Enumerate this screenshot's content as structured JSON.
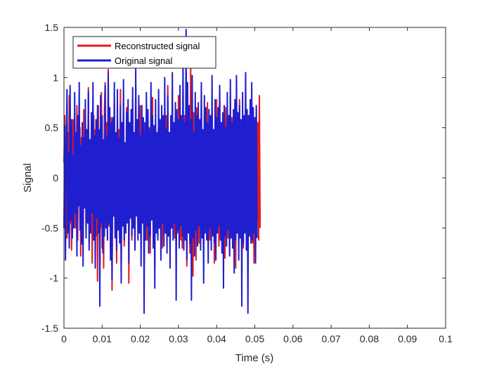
{
  "chart_data": {
    "type": "line",
    "title": "",
    "xlabel": "Time (s)",
    "ylabel": "Signal",
    "xlim": [
      0,
      0.1
    ],
    "ylim": [
      -1.5,
      1.5
    ],
    "grid": false,
    "legend_position": "top-left",
    "x_ticks": [
      0,
      0.01,
      0.02,
      0.03,
      0.04,
      0.05,
      0.06,
      0.07,
      0.08,
      0.09,
      0.1
    ],
    "x_tick_labels": [
      "0",
      "0.01",
      "0.02",
      "0.03",
      "0.04",
      "0.05",
      "0.06",
      "0.07",
      "0.08",
      "0.09",
      "0.1"
    ],
    "y_ticks": [
      -1.5,
      -1,
      -0.5,
      0,
      0.5,
      1,
      1.5
    ],
    "y_tick_labels": [
      "-1.5",
      "-1",
      "-0.5",
      "0",
      "0.5",
      "1",
      "1.5"
    ],
    "x_start": 0,
    "x_step": 0.0002,
    "series": [
      {
        "name": "Reconstructed signal",
        "color": "#e41a1c",
        "values": [
          0.15,
          0.62,
          -0.35,
          0.28,
          -0.6,
          0.45,
          -0.12,
          0.82,
          -0.45,
          0.3,
          -0.72,
          0.22,
          0.58,
          -0.28,
          0.4,
          -0.5,
          0.12,
          0.72,
          -0.62,
          0.35,
          -0.2,
          0.5,
          -0.78,
          0.4,
          0.1,
          -0.45,
          0.68,
          -0.3,
          0.25,
          -0.55,
          0.45,
          -0.15,
          0.9,
          -0.65,
          0.32,
          -0.4,
          0.55,
          -0.85,
          0.2,
          0.62,
          -0.35,
          0.48,
          -0.58,
          0.3,
          -1.03,
          0.72,
          -0.25,
          0.45,
          -0.5,
          0.85,
          -0.7,
          0.38,
          -0.9,
          0.66,
          0.95,
          -0.45,
          0.55,
          -0.62,
          1.08,
          -0.48,
          0.35,
          -0.72,
          0.6,
          -1.12,
          0.42,
          -0.38,
          0.78,
          -0.55,
          0.3,
          -0.85,
          0.62,
          -0.28,
          0.48,
          -0.6,
          0.88,
          -0.95,
          0.55,
          -0.35,
          0.42,
          -0.68,
          0.35,
          -0.5,
          0.7,
          -0.4,
          0.6,
          -1.05,
          0.45,
          -0.3,
          0.52,
          -0.62,
          0.78,
          -0.48,
          0.38,
          -0.72,
          0.95,
          -0.35,
          0.25,
          -0.55,
          0.6,
          -0.4,
          0.72,
          -0.65,
          0.48,
          -0.3,
          0.55,
          -0.88,
          0.42,
          -0.5,
          0.35,
          -0.62,
          0.68,
          -0.42,
          0.5,
          -0.75,
          0.62,
          -0.35,
          0.8,
          -0.58,
          0.42,
          -0.9,
          0.55,
          -0.45,
          0.38,
          -0.6,
          0.72,
          -0.5,
          0.45,
          -0.32,
          0.6,
          -0.7,
          0.35,
          -0.45,
          0.5,
          -0.38,
          0.62,
          -0.55,
          0.92,
          -0.48,
          0.4,
          -0.65,
          0.55,
          -0.38,
          0.3,
          -0.5,
          0.48,
          -0.6,
          0.68,
          -0.42,
          0.35,
          -0.55,
          0.82,
          -0.48,
          0.5,
          -0.62,
          0.45,
          -0.7,
          0.98,
          -0.55,
          0.62,
          -0.4,
          0.52,
          -0.88,
          0.72,
          -0.45,
          0.58,
          -0.75,
          1.18,
          -0.52,
          0.45,
          -0.98,
          0.65,
          -0.4,
          0.55,
          -0.82,
          0.7,
          -0.48,
          0.6,
          -0.65,
          0.5,
          -0.42,
          0.88,
          -0.55,
          0.4,
          -0.72,
          0.62,
          -0.48,
          0.35,
          -0.58,
          0.75,
          -0.5,
          0.45,
          -0.62,
          0.55,
          -0.38,
          0.68,
          -0.52,
          0.42,
          -0.85,
          0.6,
          -0.45,
          0.78,
          -0.55,
          0.48,
          -0.68,
          0.92,
          -0.5,
          0.38,
          -0.72,
          0.55,
          -0.42,
          0.62,
          -0.8,
          0.7,
          -0.48,
          0.52,
          -0.6,
          0.45,
          -0.75,
          0.82,
          -0.55,
          0.6,
          -0.42,
          0.48,
          -0.68,
          0.72,
          -0.9,
          0.58,
          -0.45,
          0.4,
          -0.62,
          0.78,
          -0.5,
          0.55,
          -0.38,
          0.65,
          -0.7,
          0.48,
          -0.52,
          0.9,
          -0.6,
          0.42,
          -0.55,
          0.62,
          -0.48,
          0.72,
          -0.4,
          0.5,
          -0.65,
          0.58,
          -0.85,
          0.45,
          -0.52,
          0.7,
          -0.42,
          0.55,
          -0.62,
          0.82,
          -0.5
        ]
      },
      {
        "name": "Original signal",
        "color": "#1f1fd0",
        "values": [
          -0.5,
          0.52,
          -0.82,
          0.35,
          0.88,
          -0.55,
          0.25,
          -0.7,
          0.92,
          -0.42,
          0.58,
          -0.6,
          0.22,
          -0.5,
          0.85,
          -0.35,
          0.45,
          -0.78,
          0.62,
          -0.28,
          0.95,
          -0.52,
          0.32,
          -0.66,
          0.55,
          -0.88,
          0.4,
          -0.3,
          0.78,
          -0.6,
          0.48,
          -0.45,
          0.86,
          -0.72,
          0.38,
          -0.55,
          0.65,
          -0.35,
          0.95,
          -0.62,
          0.42,
          -0.9,
          0.58,
          -0.4,
          0.72,
          -0.55,
          0.48,
          -1.28,
          0.82,
          -0.45,
          0.62,
          -0.75,
          0.38,
          -0.58,
          0.92,
          -0.5,
          0.42,
          -0.62,
          1.05,
          -0.45,
          0.7,
          -0.82,
          0.55,
          -1.02,
          0.6,
          -0.38,
          0.95,
          -0.6,
          0.45,
          -0.72,
          0.88,
          -0.52,
          0.4,
          -0.65,
          0.72,
          -1.05,
          0.55,
          -0.48,
          0.98,
          -0.62,
          0.35,
          -0.55,
          0.65,
          -0.45,
          0.78,
          -0.85,
          0.55,
          -0.4,
          0.68,
          -0.58,
          0.9,
          -0.5,
          0.45,
          -0.72,
          1.1,
          -0.38,
          0.58,
          -0.62,
          0.82,
          -0.55,
          0.42,
          -0.88,
          0.72,
          -0.45,
          0.6,
          -1.35,
          0.55,
          -0.62,
          0.85,
          -0.48,
          0.68,
          -0.75,
          0.48,
          -0.58,
          0.95,
          -0.42,
          0.62,
          -0.7,
          0.52,
          -1.1,
          0.78,
          -0.55,
          0.45,
          -0.62,
          0.88,
          -0.5,
          0.58,
          -0.82,
          0.72,
          -0.45,
          0.62,
          -0.68,
          1.0,
          -0.55,
          0.48,
          -0.75,
          0.82,
          -0.58,
          0.45,
          -0.9,
          0.62,
          -0.5,
          1.05,
          -0.62,
          0.55,
          -0.45,
          0.75,
          -1.22,
          0.68,
          -0.52,
          0.58,
          -0.7,
          0.92,
          -0.48,
          0.62,
          -0.58,
          1.18,
          -0.72,
          0.55,
          -0.62,
          1.48,
          -0.82,
          0.95,
          -0.55,
          0.72,
          -0.65,
          0.58,
          -1.22,
          1.02,
          -0.6,
          0.45,
          -0.78,
          0.85,
          -0.52,
          0.62,
          -0.68,
          0.75,
          -0.48,
          0.58,
          -0.72,
          0.95,
          -0.6,
          0.48,
          -1.05,
          0.82,
          -0.55,
          0.7,
          -0.62,
          0.55,
          -0.85,
          0.68,
          -0.5,
          0.62,
          -0.72,
          1.02,
          -0.58,
          0.48,
          -0.65,
          0.78,
          -0.82,
          0.6,
          -0.55,
          0.7,
          -0.48,
          0.92,
          -0.62,
          0.55,
          -0.75,
          0.65,
          -1.1,
          0.72,
          -0.58,
          0.5,
          -0.68,
          0.85,
          -0.52,
          0.62,
          -0.78,
          0.98,
          -0.6,
          0.55,
          -0.7,
          0.68,
          -0.95,
          0.78,
          -0.62,
          1.02,
          -0.55,
          0.65,
          -0.82,
          0.72,
          -0.6,
          0.58,
          -1.28,
          0.85,
          -0.66,
          0.62,
          -0.55,
          1.05,
          -0.72,
          0.68,
          -1.35,
          0.62,
          -0.58,
          0.78,
          -0.65,
          0.95,
          -0.62,
          0.7,
          -0.55,
          0.6,
          -0.85,
          0.72,
          -0.6
        ]
      }
    ]
  }
}
